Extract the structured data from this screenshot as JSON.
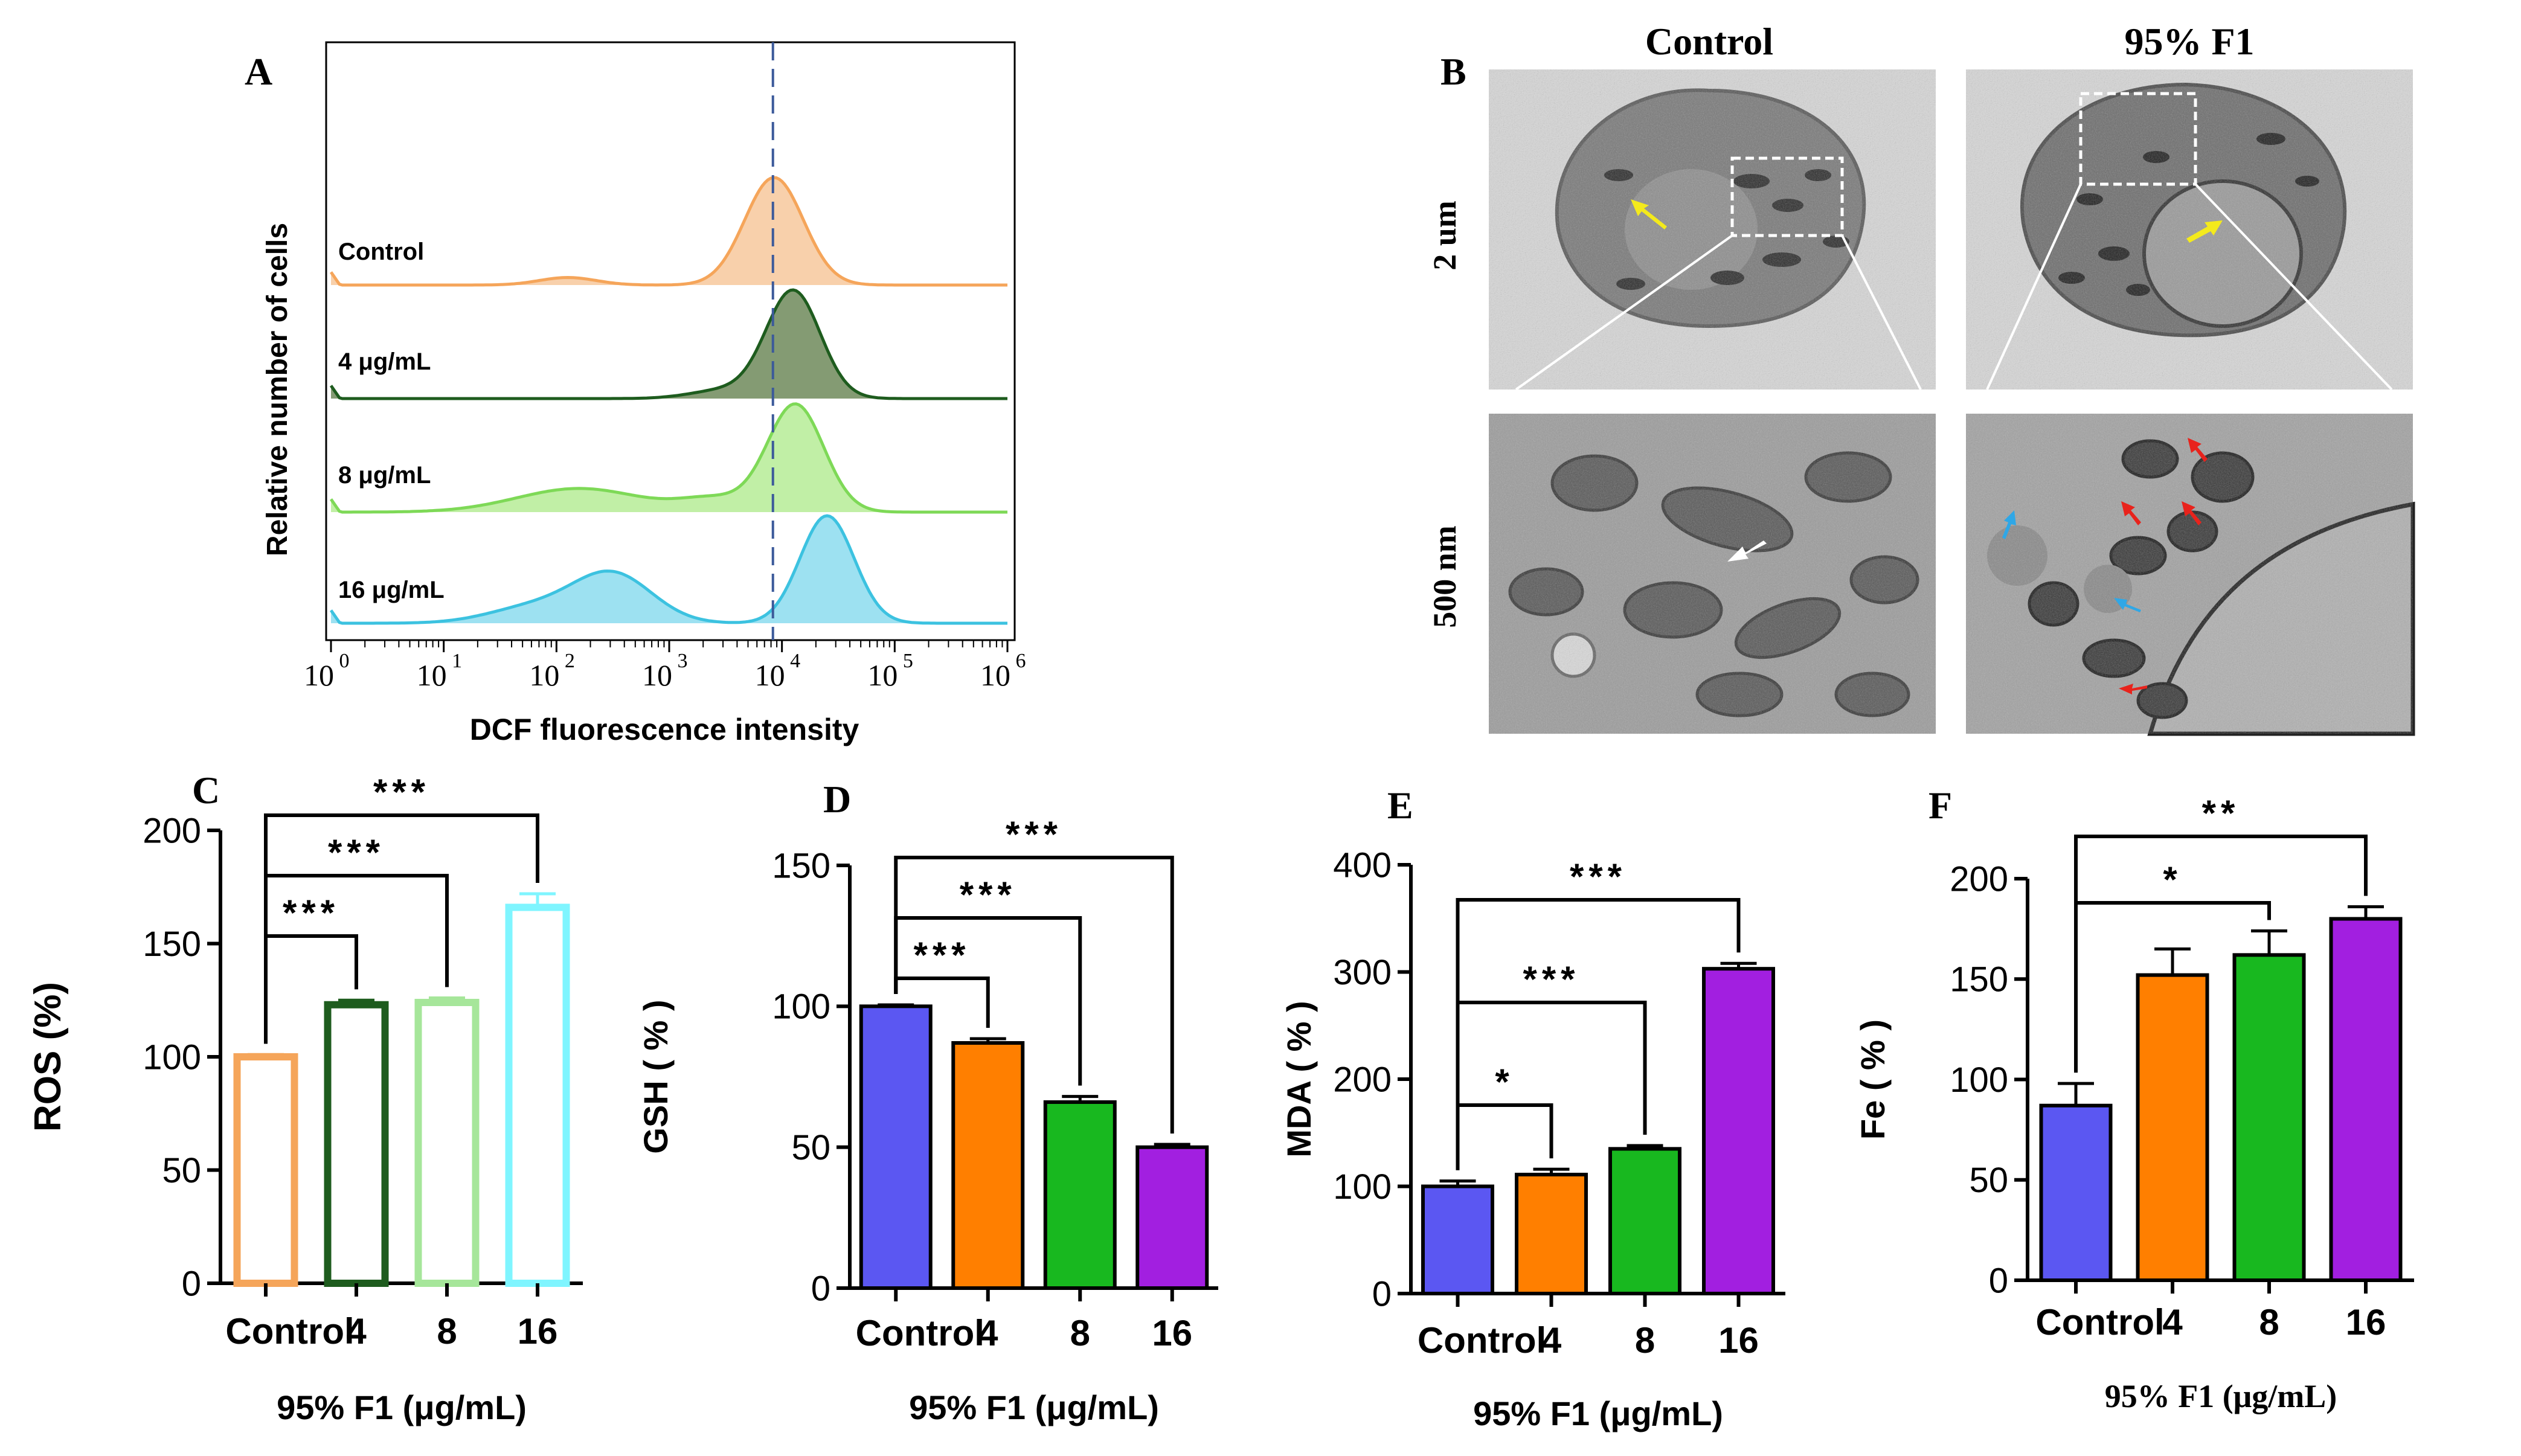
{
  "figure": {
    "panel_letters": [
      "A",
      "B",
      "C",
      "D",
      "E",
      "F"
    ]
  },
  "panel_a": {
    "chart_type": "histogram-overlay",
    "xlabel": "DCF fluorescence intensity",
    "ylabel": "Relative number of cells",
    "x_ticks": [
      {
        "base": "10",
        "exp": "0"
      },
      {
        "base": "10",
        "exp": "1"
      },
      {
        "base": "10",
        "exp": "2"
      },
      {
        "base": "10",
        "exp": "3"
      },
      {
        "base": "10",
        "exp": "4"
      },
      {
        "base": "10",
        "exp": "5"
      },
      {
        "base": "10",
        "exp": "6"
      }
    ],
    "reference_line_log10": 3.92,
    "traces": [
      {
        "label": "Control",
        "color": "#f5a55a",
        "fill": "#f7c89c",
        "peak_log10": 3.93,
        "peaks": [
          [
            3.93,
            0.26,
            1.0
          ],
          [
            2.1,
            0.25,
            0.07
          ]
        ]
      },
      {
        "label": "4 μg/mL",
        "color": "#1e5c1e",
        "fill": "#6e8a5a",
        "peak_log10": 4.1,
        "peaks": [
          [
            4.1,
            0.24,
            1.0
          ],
          [
            3.5,
            0.3,
            0.08
          ]
        ]
      },
      {
        "label": "8 μg/mL",
        "color": "#7ed957",
        "fill": "#b6ec96",
        "peak_log10": 4.12,
        "peaks": [
          [
            4.12,
            0.25,
            1.0
          ],
          [
            2.2,
            0.55,
            0.22
          ],
          [
            3.4,
            0.3,
            0.12
          ]
        ]
      },
      {
        "label": "16 μg/mL",
        "color": "#3cc2e0",
        "fill": "#8cdcee",
        "peak_log10": 4.4,
        "peaks": [
          [
            4.4,
            0.24,
            1.0
          ],
          [
            2.5,
            0.35,
            0.45
          ],
          [
            1.8,
            0.4,
            0.15
          ]
        ]
      }
    ]
  },
  "panel_b": {
    "columns": [
      "Control",
      "95% F1"
    ],
    "rows": [
      "2 um",
      "500 nm"
    ],
    "description_marks": "TEM micrographs with arrows"
  },
  "chart_data": [
    {
      "panel": "C",
      "type": "bar",
      "categories": [
        "Control",
        "4",
        "8",
        "16"
      ],
      "values": [
        100,
        123,
        124,
        166
      ],
      "errors": [
        1,
        2,
        2,
        6
      ],
      "ylabel": "ROS (%)",
      "xlabel": "95% F1 (μg/mL)",
      "ylim": [
        0,
        200
      ],
      "yticks": [
        "0",
        "50",
        "100",
        "150",
        "200"
      ],
      "colors": [
        "#f5a55a",
        "#1e5c1e",
        "#a6e69a",
        "#7ff5ff"
      ],
      "style": "outline",
      "significance": [
        {
          "to": 1,
          "label": "***"
        },
        {
          "to": 2,
          "label": "***"
        },
        {
          "to": 3,
          "label": "***"
        }
      ]
    },
    {
      "panel": "D",
      "type": "bar",
      "categories": [
        "Control",
        "4",
        "8",
        "16"
      ],
      "values": [
        100,
        87,
        66,
        50
      ],
      "errors": [
        0.5,
        1.5,
        2,
        1
      ],
      "ylabel": "GSH ( % )",
      "xlabel": "95% F1 (μg/mL)",
      "ylim": [
        0,
        150
      ],
      "yticks": [
        "0",
        "50",
        "100",
        "150"
      ],
      "colors": [
        "#5b57f2",
        "#ff7f00",
        "#18b81f",
        "#a21fe0"
      ],
      "style": "filled",
      "significance": [
        {
          "to": 1,
          "label": "***"
        },
        {
          "to": 2,
          "label": "***"
        },
        {
          "to": 3,
          "label": "***"
        }
      ]
    },
    {
      "panel": "E",
      "type": "bar",
      "categories": [
        "Control",
        "4",
        "8",
        "16"
      ],
      "values": [
        100,
        111,
        135,
        303
      ],
      "errors": [
        5,
        5,
        3,
        5
      ],
      "ylabel": "MDA ( % )",
      "xlabel": "95% F1 (μg/mL)",
      "ylim": [
        0,
        400
      ],
      "yticks": [
        "0",
        "100",
        "200",
        "300",
        "400"
      ],
      "colors": [
        "#5b57f2",
        "#ff7f00",
        "#18b81f",
        "#a21fe0"
      ],
      "style": "filled",
      "significance": [
        {
          "to": 1,
          "label": "*"
        },
        {
          "to": 2,
          "label": "***"
        },
        {
          "to": 3,
          "label": "***"
        }
      ]
    },
    {
      "panel": "F",
      "type": "bar",
      "categories": [
        "Control",
        "4",
        "8",
        "16"
      ],
      "values": [
        87,
        152,
        162,
        180
      ],
      "errors": [
        11,
        13,
        12,
        6
      ],
      "ylabel": "Fe ( % )",
      "xlabel": "95% F1 (μg/mL)",
      "ylim": [
        0,
        200
      ],
      "yticks": [
        "0",
        "50",
        "100",
        "150",
        "200"
      ],
      "colors": [
        "#5b57f2",
        "#ff7f00",
        "#18b81f",
        "#a21fe0"
      ],
      "style": "filled",
      "significance": [
        {
          "to": 2,
          "label": "*"
        },
        {
          "to": 3,
          "label": "**"
        }
      ]
    }
  ]
}
